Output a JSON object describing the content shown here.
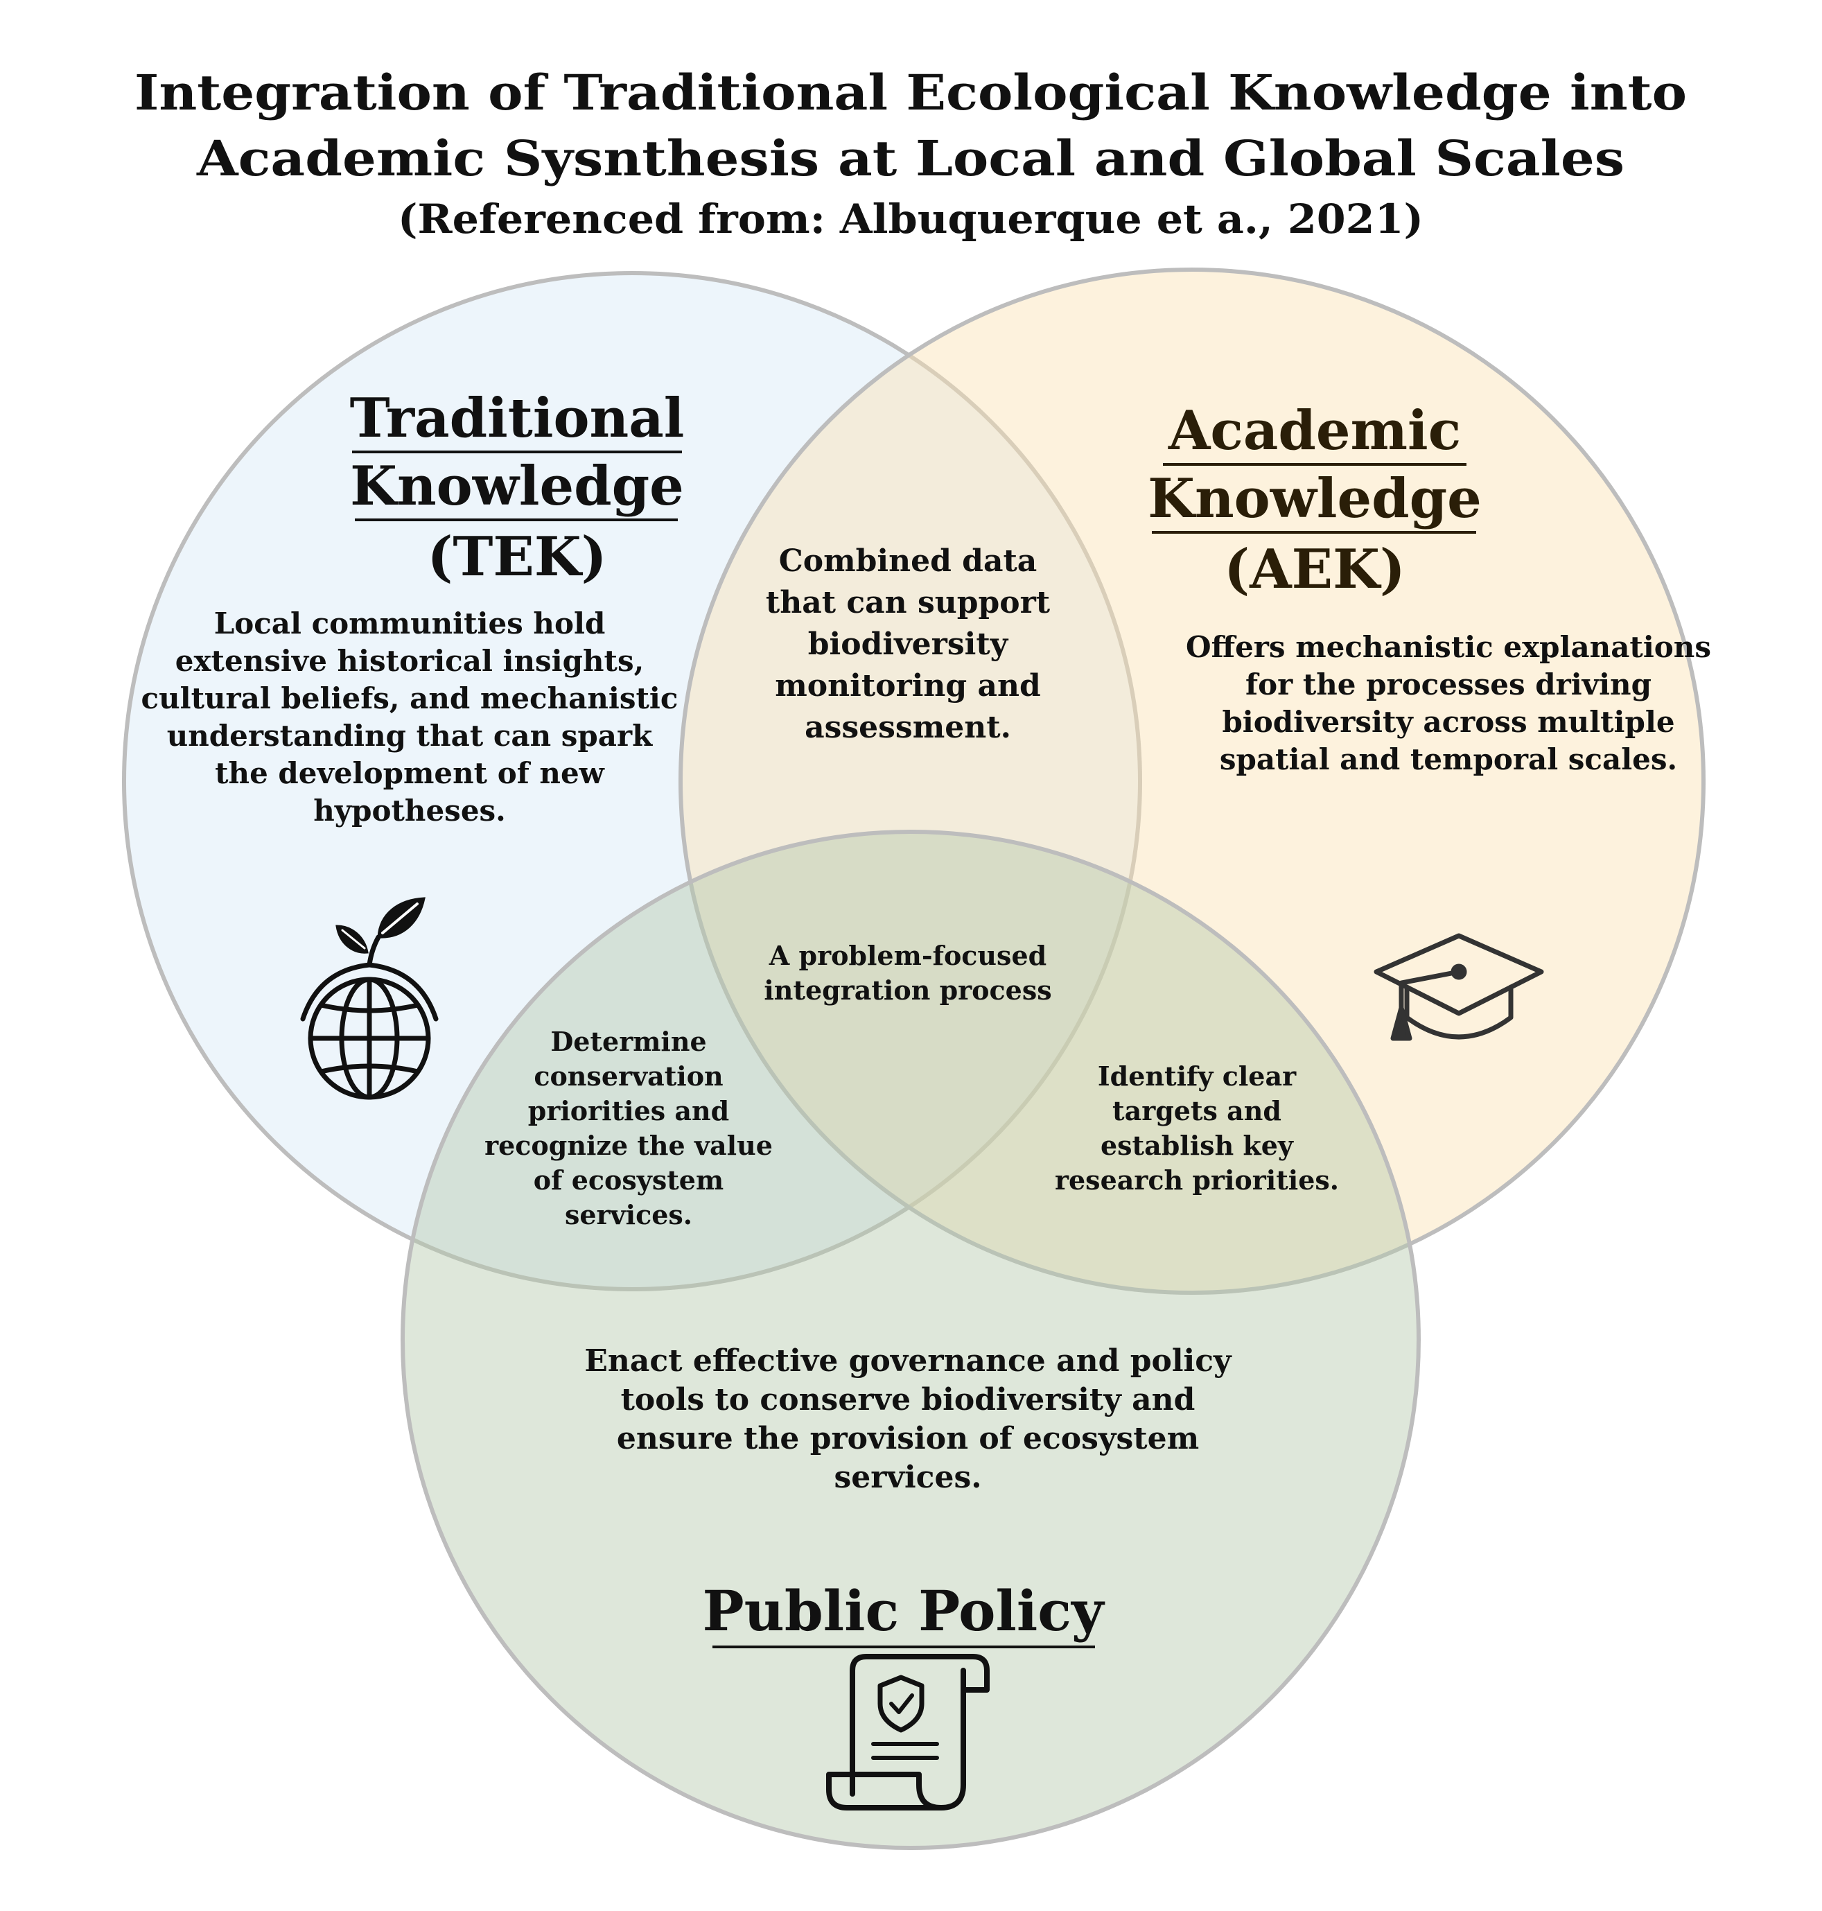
{
  "title": {
    "lines": [
      "Integration of Traditional Ecological Knowledge into",
      "Academic Sysnthesis at Local and Global Scales"
    ],
    "subtitle": "(Referenced from: Albuquerque et a., 2021)"
  },
  "colors": {
    "tek_fill": "#d4e8f5",
    "aek_fill": "#fbe3b4",
    "policy_fill": "#b5caac",
    "circle_stroke": "#bdbdbd",
    "aek_title": "#2a1e08",
    "text": "#111111"
  },
  "circles": {
    "tek": {
      "title_lines": [
        "Traditional",
        "Knowledge",
        "(TEK)"
      ],
      "description_lines": [
        "Local communities hold",
        "extensive historical insights,",
        "cultural beliefs, and mechanistic",
        "understanding that can spark",
        "the development of new",
        "hypotheses."
      ],
      "icon": "globe-sprout-icon"
    },
    "aek": {
      "title_lines": [
        "Academic",
        "Knowledge",
        "(AEK)"
      ],
      "description_lines": [
        "Offers mechanistic explanations",
        "for the processes driving",
        "biodiversity across multiple",
        "spatial and temporal scales."
      ],
      "icon": "graduation-cap-icon"
    },
    "policy": {
      "title": "Public Policy",
      "description_lines": [
        "Enact effective governance and policy",
        "tools to conserve biodiversity and",
        "ensure the provision of ecosystem",
        "services."
      ],
      "icon": "policy-scroll-icon"
    }
  },
  "overlaps": {
    "tek_aek": [
      "Combined data",
      "that can support",
      "biodiversity",
      "monitoring and",
      "assessment."
    ],
    "center": [
      "A problem-focused",
      "integration process"
    ],
    "tek_policy": [
      "Determine",
      "conservation",
      "priorities and",
      "recognize the value",
      "of ecosystem",
      "services."
    ],
    "aek_policy": [
      "Identify clear",
      "targets and",
      "establish key",
      "research priorities."
    ]
  }
}
